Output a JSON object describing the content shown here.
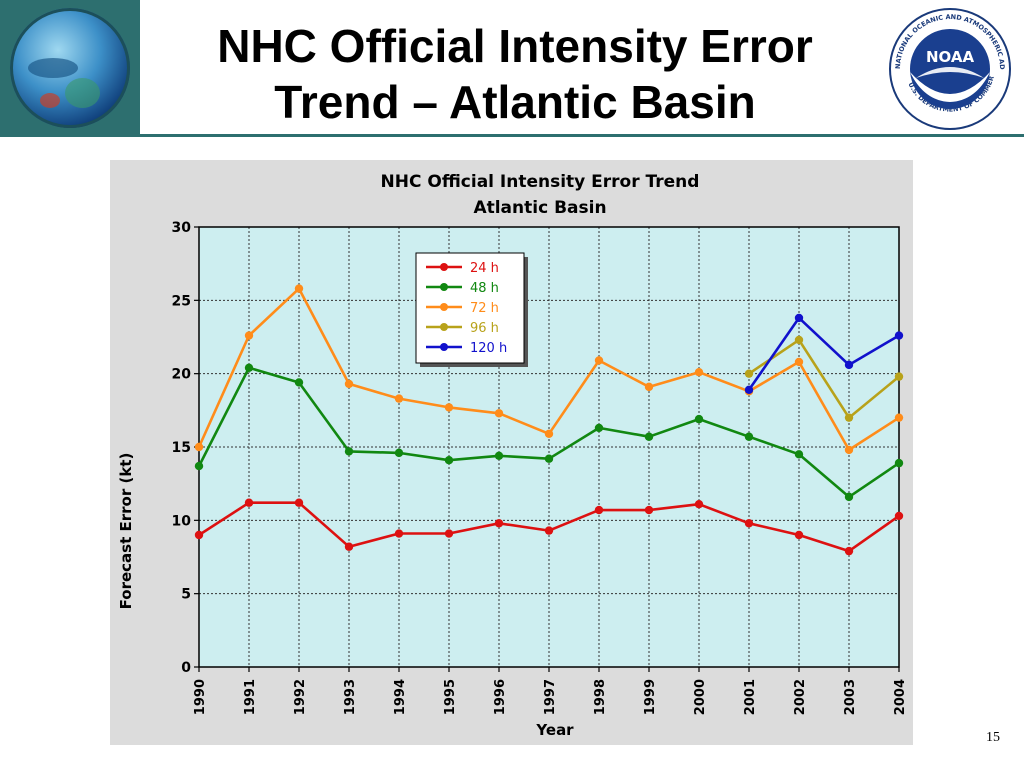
{
  "slide": {
    "title_line1": "NHC Official Intensity Error",
    "title_line2": "Trend – Atlantic Basin",
    "page_number": "15",
    "noaa_logo_text": "NOAA",
    "noaa_ring_text": "NATIONAL OCEANIC AND ATMOSPHERIC ADMINISTRATION",
    "noaa_ring_text_bottom": "U.S. DEPARTMENT OF COMMERCE",
    "colors": {
      "header_rule": "#2d6f6f",
      "plot_bg": "#cdeef0",
      "panel_bg": "#dcdcdc"
    }
  },
  "chart_data": {
    "type": "line",
    "title_line1": "NHC Official Intensity Error Trend",
    "title_line2": "Atlantic Basin",
    "xlabel": "Year",
    "ylabel": "Forecast Error (kt)",
    "x": [
      "1990",
      "1991",
      "1992",
      "1993",
      "1994",
      "1995",
      "1996",
      "1997",
      "1998",
      "1999",
      "2000",
      "2001",
      "2002",
      "2003",
      "2004"
    ],
    "yticks": [
      "0",
      "5",
      "10",
      "15",
      "20",
      "25",
      "30"
    ],
    "ylim": [
      0,
      30
    ],
    "grid": true,
    "legend_position": "top-center",
    "series": [
      {
        "name": "24 h",
        "color": "#dd1111",
        "values": [
          9.0,
          11.2,
          11.2,
          8.2,
          9.1,
          9.1,
          9.8,
          9.3,
          10.7,
          10.7,
          11.1,
          9.8,
          9.0,
          7.9,
          10.3
        ]
      },
      {
        "name": "48 h",
        "color": "#118811",
        "values": [
          13.7,
          20.4,
          19.4,
          14.7,
          14.6,
          14.1,
          14.4,
          14.2,
          16.3,
          15.7,
          16.9,
          15.7,
          14.5,
          11.6,
          13.9
        ]
      },
      {
        "name": "72 h",
        "color": "#ff8c1a",
        "values": [
          15.0,
          22.6,
          25.8,
          19.3,
          18.3,
          17.7,
          17.3,
          15.9,
          20.9,
          19.1,
          20.1,
          18.8,
          20.8,
          14.8,
          17.0
        ]
      },
      {
        "name": "96 h",
        "color": "#b8a21a",
        "values": [
          null,
          null,
          null,
          null,
          null,
          null,
          null,
          null,
          null,
          null,
          null,
          20.0,
          22.3,
          17.0,
          19.8
        ]
      },
      {
        "name": "120 h",
        "color": "#1111cc",
        "values": [
          null,
          null,
          null,
          null,
          null,
          null,
          null,
          null,
          null,
          null,
          null,
          18.9,
          23.8,
          20.6,
          22.6
        ]
      }
    ]
  }
}
